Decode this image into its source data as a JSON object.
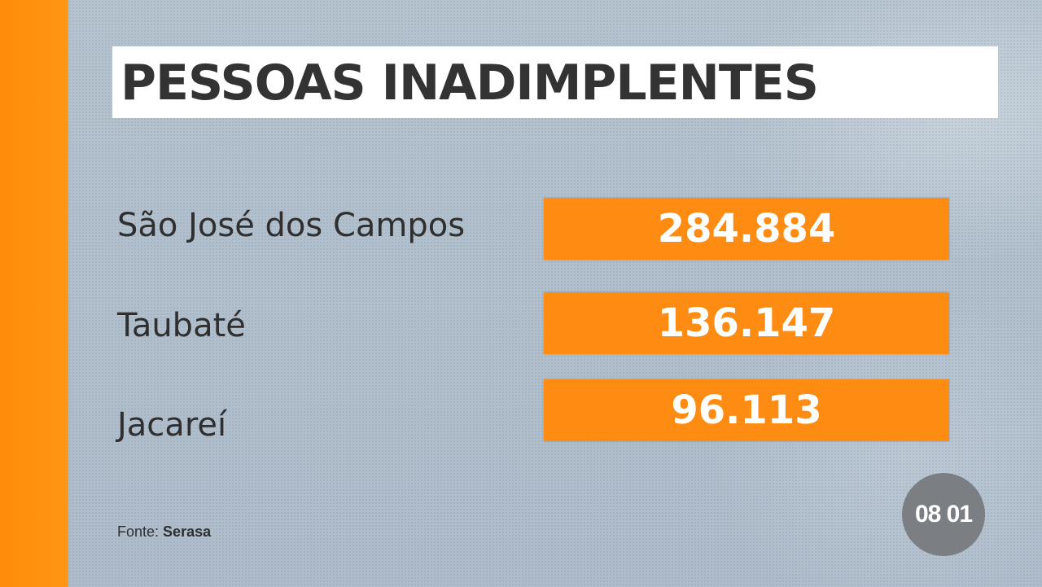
{
  "title": "PESSOAS INADIMPLENTES",
  "rows": [
    {
      "label": "São José dos Campos",
      "value": "284.884"
    },
    {
      "label": "Taubaté",
      "value": "136.147"
    },
    {
      "label": "Jacareí",
      "value": "96.113"
    }
  ],
  "source": {
    "prefix": "Fonte:",
    "name": "Serasa"
  },
  "time": "08 01",
  "colors": {
    "accent": "#ff8c12",
    "stripe": "#ff8c0a",
    "background": "#b2c0cc",
    "text": "#2f2f2f",
    "badge": "#7b7f83"
  }
}
